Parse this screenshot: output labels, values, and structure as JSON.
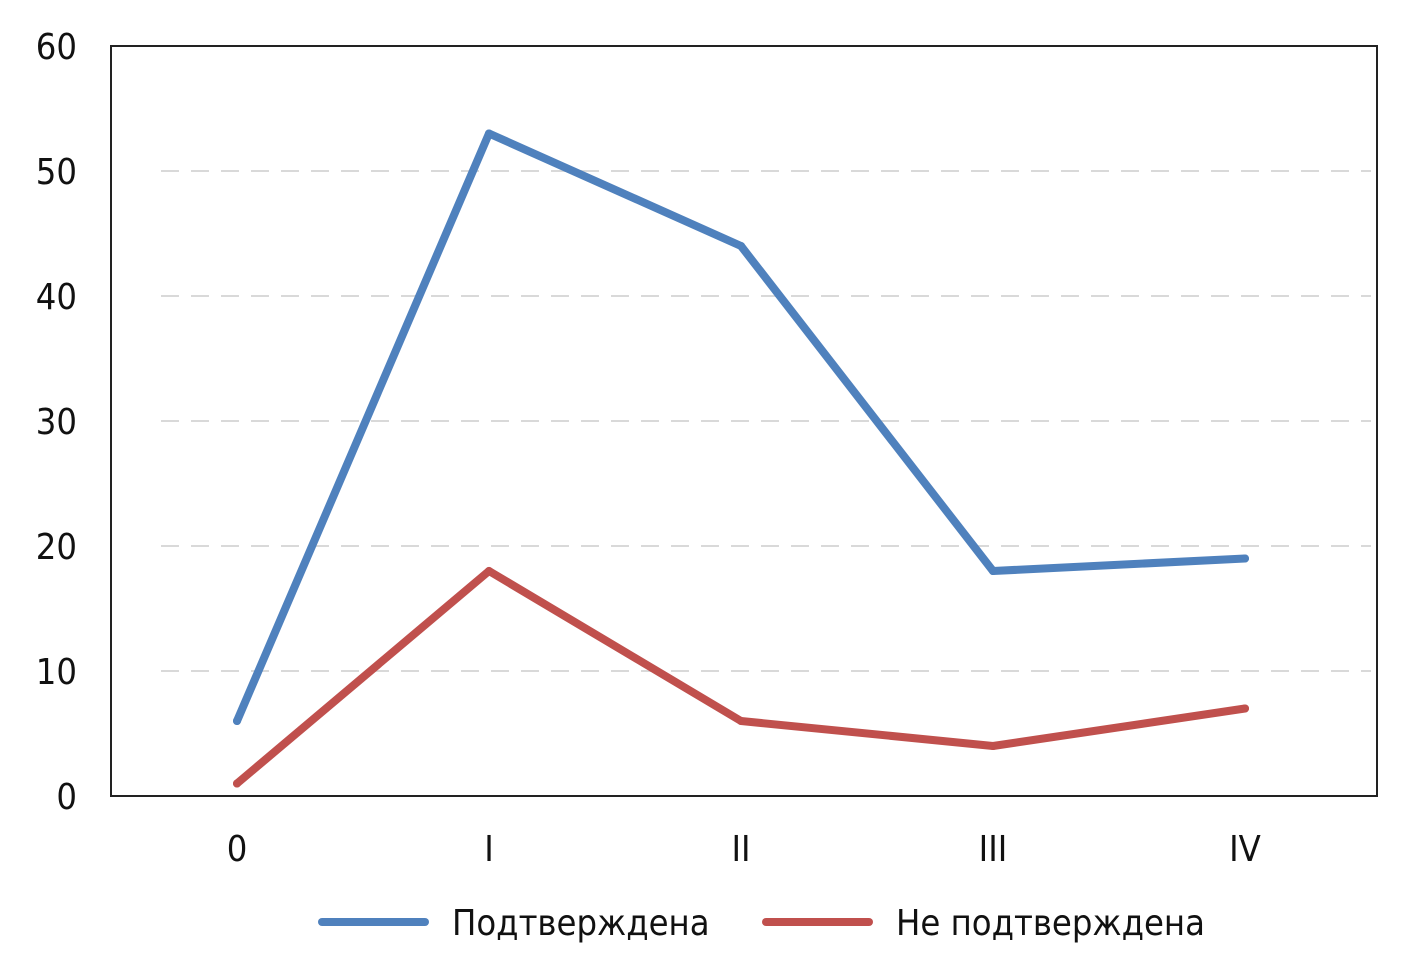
{
  "chart_data": {
    "type": "line",
    "categories": [
      "0",
      "I",
      "II",
      "III",
      "IV"
    ],
    "series": [
      {
        "name": "Подтверждена",
        "values": [
          6,
          53,
          44,
          18,
          19
        ],
        "color": "#4f81bd"
      },
      {
        "name": "Не подтверждена",
        "values": [
          1,
          18,
          6,
          4,
          7
        ],
        "color": "#c0504d"
      }
    ],
    "title": "",
    "xlabel": "",
    "ylabel": "",
    "ylim": [
      0,
      60
    ],
    "yticks": [
      0,
      10,
      20,
      30,
      40,
      50,
      60
    ],
    "grid": true,
    "legend": "bottom"
  }
}
